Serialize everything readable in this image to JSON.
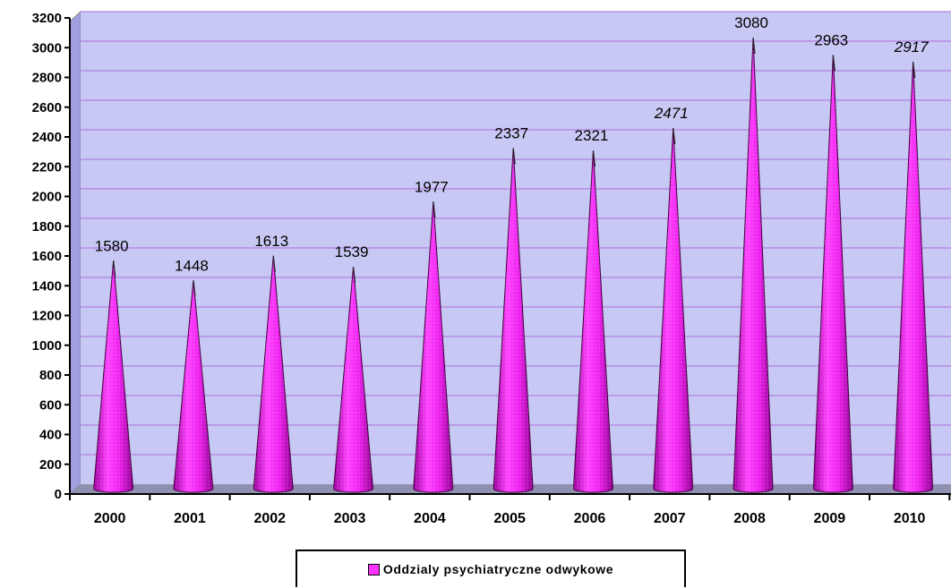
{
  "chart_data": {
    "type": "bar",
    "categories": [
      "2000",
      "2001",
      "2002",
      "2003",
      "2004",
      "2005",
      "2006",
      "2007",
      "2008",
      "2009",
      "2010"
    ],
    "series": [
      {
        "name": "Oddzialy psychiatryczne odwykowe",
        "values": [
          1580,
          1448,
          1613,
          1539,
          1977,
          2337,
          2321,
          2471,
          3080,
          2963,
          2917
        ]
      }
    ],
    "data_labels": [
      "1580",
      "1448",
      "1613",
      "1539",
      "1977",
      "2337",
      "2321",
      "2471",
      "3080",
      "2963",
      "2917"
    ],
    "italic_labels": [
      "2471",
      "2917"
    ],
    "ylim": [
      0,
      3200
    ],
    "yticks": [
      "0",
      "200",
      "400",
      "600",
      "800",
      "1000",
      "1200",
      "1400",
      "1600",
      "1800",
      "2000",
      "2200",
      "2400",
      "2600",
      "2800",
      "3000",
      "3200"
    ],
    "grid": true,
    "legend_position": "bottom",
    "colors": {
      "bar": "#ff33ff",
      "bar_shade": "#b000b0",
      "plot_back": "#c8c8f4",
      "gridline": "#b080e0"
    },
    "bar_shape": "cone"
  },
  "legend": {
    "label": "Oddzialy psychiatryczne odwykowe",
    "swatch_color": "#ff33ff"
  }
}
